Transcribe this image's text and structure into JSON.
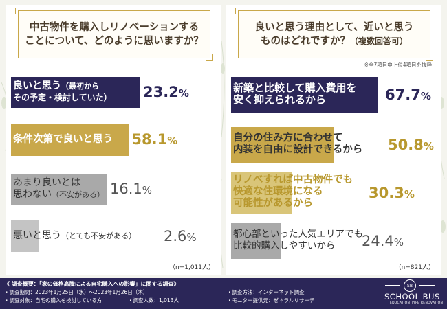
{
  "chart_data": [
    {
      "type": "bar",
      "title": "中古物件を購入しリノベーションすることについて、どのように思いますか？",
      "categories": [
        "良いと思う（最初からその予定・検討していた）",
        "条件次第で良いと思う",
        "あまり良いとは思わない（不安がある）",
        "悪いと思う（とても不安がある）"
      ],
      "values": [
        23.2,
        58.1,
        16.1,
        2.6
      ],
      "unit": "%",
      "xlim": [
        0,
        100
      ],
      "n": "（n=1,011人）",
      "labels": [
        {
          "line1": "良いと思う",
          "line1_small": "（最初から",
          "line2": "その予定・検討していた）",
          "value": "23.2",
          "pct": "%"
        },
        {
          "line1": "条件次第で良いと思う",
          "line1_small": "",
          "line2": "",
          "value": "58.1",
          "pct": "%"
        },
        {
          "line1": "あまり良いとは",
          "line1_small": "",
          "line2": "思わない",
          "line2_small": "（不安がある）",
          "value": "16.1",
          "pct": "%"
        },
        {
          "line1": "悪いと思う",
          "line1_small": "（とても不安がある）",
          "line2": "",
          "value": "2.6",
          "pct": "%"
        }
      ]
    },
    {
      "type": "bar",
      "title_line1": "良いと思う理由として、近いと思う",
      "title_line2": "ものはどれですか？",
      "title_sub": "（複数回答可）",
      "note": "※全7項目中上位4項目を抜粋",
      "categories": [
        "新築と比較して購入費用を安く抑えられるから",
        "自分の住み方に合わせて内装を自由に設計できるから",
        "リノベすれば中古物件でも快適な住環境になる可能性があるから",
        "都心部といった人気エリアでも比較的購入しやすいから"
      ],
      "values": [
        67.7,
        50.8,
        30.3,
        24.4
      ],
      "unit": "%",
      "xlim": [
        0,
        100
      ],
      "n": "（n=821人）",
      "labels": [
        {
          "lines": [
            "新築と比較して購入費用を",
            "安く抑えられるから"
          ],
          "value": "67.7",
          "pct": "%"
        },
        {
          "lines": [
            "自分の住み方に合わせて",
            "内装を自由に設計できるから"
          ],
          "value": "50.8",
          "pct": "%"
        },
        {
          "lines": [
            "リノベすれば中古物件でも",
            "快適な住環境になる",
            "可能性があるから"
          ],
          "value": "30.3",
          "pct": "%"
        },
        {
          "lines": [
            "都心部といった人気エリアでも",
            "比較的購入しやすいから"
          ],
          "value": "24.4",
          "pct": "%"
        }
      ]
    }
  ],
  "left_title_line1": "中古物件を購入しリノベーションする",
  "left_title_line2": "ことについて、どのように思いますか？",
  "colors": {
    "navy": "#2b2658",
    "gold": "#c9a84a",
    "gold_light": "#d9c579",
    "gray": "#a9a9a9",
    "gray_light": "#c4c4c4",
    "gold_text": "#b8982e",
    "navy_text": "#2b2658",
    "gray_text": "#444444"
  },
  "footer": {
    "title": "《 調査概要：「家の価格高騰による自宅購入への影響」に関する調査》",
    "period": "・調査期間：2023年1月25日（水）～2023年1月26日（木）",
    "method": "・調査方法：インターネット調査",
    "target": "・調査対象：自宅の購入を検討している方",
    "count": "・調査人数：1,013人",
    "provider": "・モニター提供元：ゼネラルリサーチ",
    "logo_mark": "SB",
    "logo_name": "SCHOOL BUS",
    "logo_tag": "EDUCATION TYPE RENOVATION"
  }
}
